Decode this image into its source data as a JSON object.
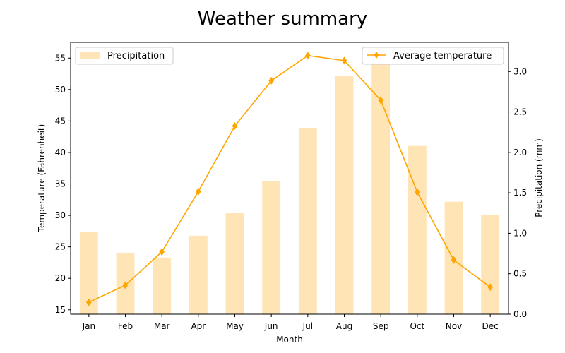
{
  "chart_data": {
    "type": "bar+line",
    "title": "Weather summary",
    "xlabel": "Month",
    "ylabel_left": "Temperature (Fahrenheit)",
    "ylabel_right": "Precipitation (mm)",
    "categories": [
      "Jan",
      "Feb",
      "Mar",
      "Apr",
      "May",
      "Jun",
      "Jul",
      "Aug",
      "Sep",
      "Oct",
      "Nov",
      "Dec"
    ],
    "ylim_left": [
      14.3,
      57.5
    ],
    "yticks_left": [
      15,
      20,
      25,
      30,
      35,
      40,
      45,
      50,
      55
    ],
    "ylim_right": [
      0,
      3.36
    ],
    "yticks_right": [
      "0.0",
      "0.5",
      "1.0",
      "1.5",
      "2.0",
      "2.5",
      "3.0"
    ],
    "series": [
      {
        "name": "Precipitation",
        "kind": "bar",
        "axis": "right",
        "color": "#ffe4b5",
        "values": [
          1.02,
          0.76,
          0.7,
          0.97,
          1.25,
          1.65,
          2.3,
          2.95,
          3.21,
          2.08,
          1.39,
          1.23
        ]
      },
      {
        "name": "Average temperature",
        "kind": "line",
        "axis": "left",
        "color": "#ffa500",
        "marker": "diamond",
        "values": [
          16.2,
          18.9,
          24.2,
          33.8,
          44.2,
          51.4,
          55.4,
          54.6,
          48.3,
          33.7,
          22.9,
          18.6
        ]
      }
    ],
    "legends": [
      {
        "position": "upper-left",
        "series": "Precipitation"
      },
      {
        "position": "upper-right",
        "series": "Average temperature"
      }
    ],
    "grid": false
  }
}
